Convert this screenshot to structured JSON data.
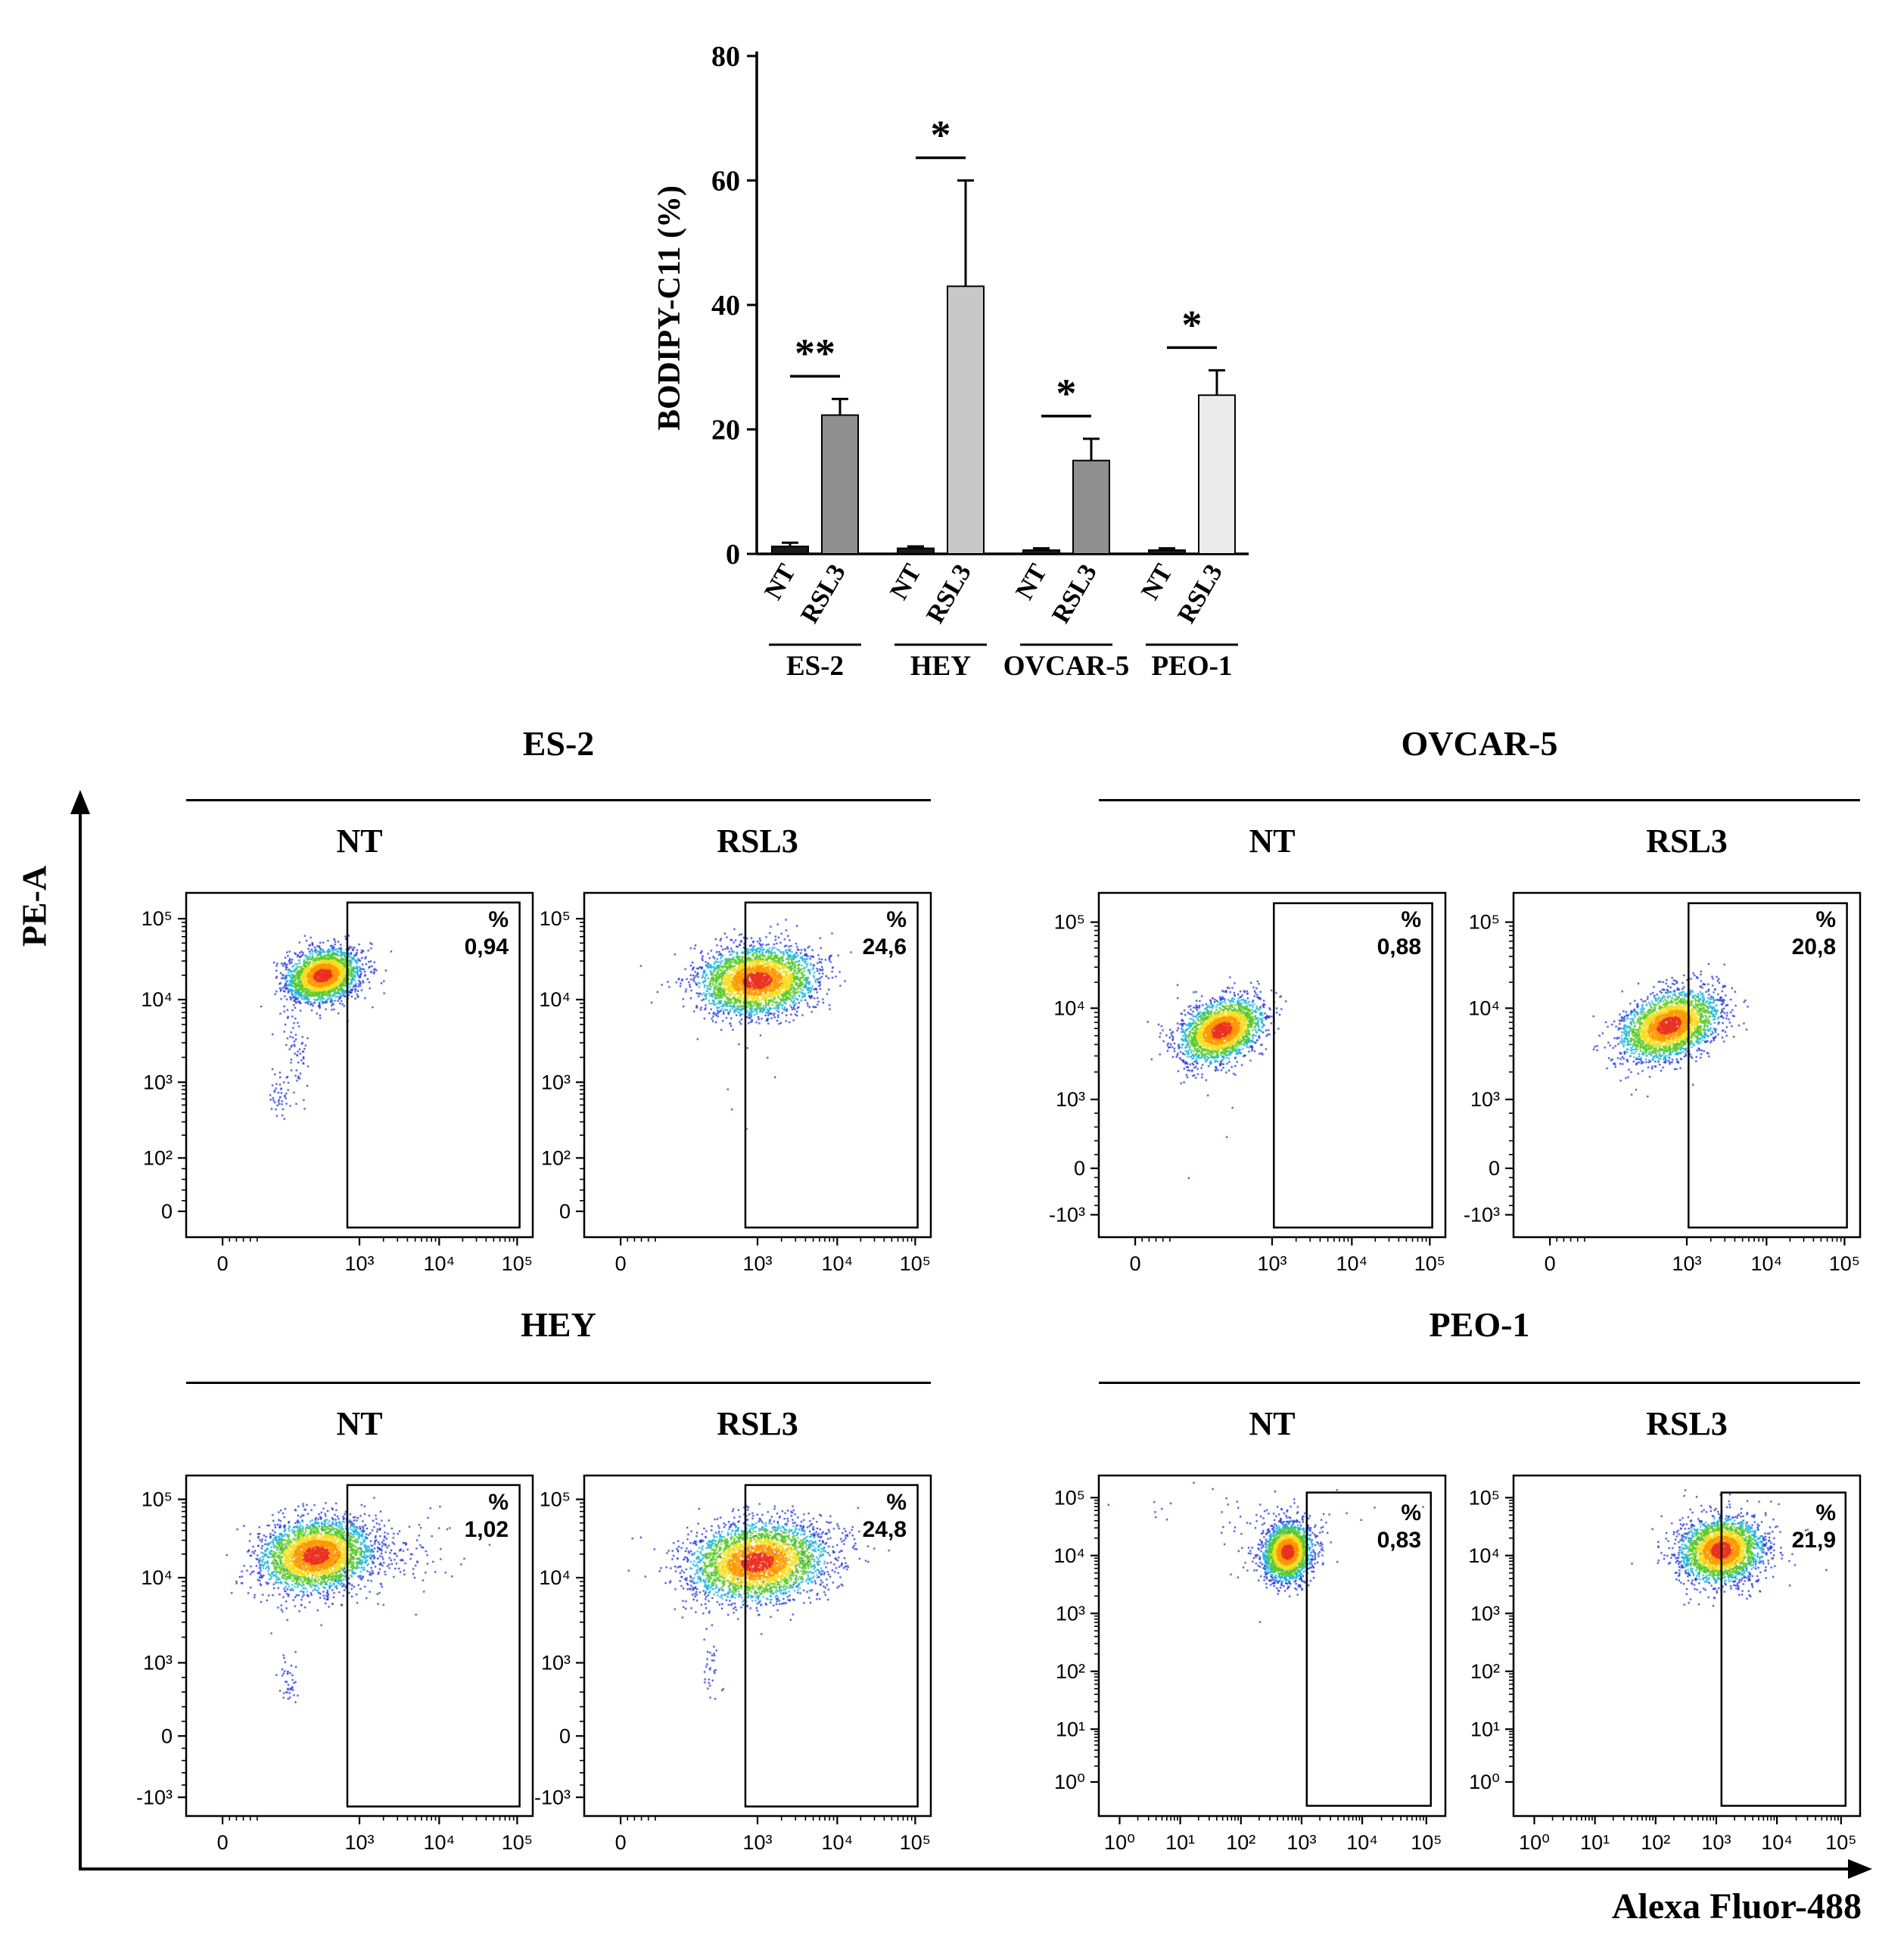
{
  "chart_data": [
    {
      "type": "bar",
      "title": "",
      "xlabel": "",
      "ylabel": "BODIPY-C11 (%)",
      "ylim": [
        0,
        80
      ],
      "yticks": [
        0,
        20,
        40,
        60,
        80
      ],
      "grid": false,
      "groups": [
        {
          "name": "ES-2",
          "significance": "**",
          "bars": [
            {
              "label": "NT",
              "value": 1.2,
              "error": 0.6,
              "color": "#1a1a1a"
            },
            {
              "label": "RSL3",
              "value": 22.3,
              "error": 2.6,
              "color": "#8f8f8f"
            }
          ]
        },
        {
          "name": "HEY",
          "significance": "*",
          "bars": [
            {
              "label": "NT",
              "value": 0.9,
              "error": 0.3,
              "color": "#1a1a1a"
            },
            {
              "label": "RSL3",
              "value": 43,
              "error": 17,
              "color": "#c8c8c8"
            }
          ]
        },
        {
          "name": "OVCAR-5",
          "significance": "*",
          "bars": [
            {
              "label": "NT",
              "value": 0.6,
              "error": 0.3,
              "color": "#1a1a1a"
            },
            {
              "label": "RSL3",
              "value": 15,
              "error": 3.5,
              "color": "#8f8f8f"
            }
          ]
        },
        {
          "name": "PEO-1",
          "significance": "*",
          "bars": [
            {
              "label": "NT",
              "value": 0.6,
              "error": 0.3,
              "color": "#1a1a1a"
            },
            {
              "label": "RSL3",
              "value": 25.5,
              "error": 4,
              "color": "#ebebeb"
            }
          ]
        }
      ]
    },
    {
      "type": "scatter",
      "xlabel": "Alexa Fluor-488",
      "ylabel": "PE-A",
      "cell_line_headers": [
        "ES-2",
        "OVCAR-5",
        "HEY",
        "PEO-1"
      ],
      "palette": {
        "blue": "#2336d4",
        "cyan": "#17b3d9",
        "green": "#57c928",
        "yellow": "#f5de20",
        "orange": "#ff9800",
        "red": "#ea3120"
      },
      "panels": [
        {
          "cell_line": "ES-2",
          "condition": "NT",
          "percent_symbol": "%",
          "percent_value": "0,94",
          "x_ticks": [
            {
              "label": "0",
              "f": 0.105
            },
            {
              "label": "10³",
              "f": 0.5
            },
            {
              "label": "10⁴",
              "f": 0.73
            },
            {
              "label": "10⁵",
              "f": 0.955
            }
          ],
          "y_ticks": [
            {
              "label": "10⁵",
              "f": 0.075
            },
            {
              "label": "10⁴",
              "f": 0.31
            },
            {
              "label": "10³",
              "f": 0.55
            },
            {
              "label": "10²",
              "f": 0.77
            },
            {
              "label": "0",
              "f": 0.925
            }
          ],
          "gate": {
            "x0": 0.465,
            "y0": 0.028,
            "x1": 0.962,
            "y1": 0.972
          },
          "clusters": [
            {
              "type": "dense",
              "cx": 0.395,
              "cy": 0.24,
              "rx": 0.052,
              "ry": 0.036,
              "rot": -15,
              "n": 2600
            },
            {
              "type": "sparse",
              "cx": 0.315,
              "cy": 0.45,
              "rx": 0.016,
              "ry": 0.06,
              "rot": -10,
              "n": 60
            },
            {
              "type": "sparse",
              "cx": 0.275,
              "cy": 0.585,
              "rx": 0.018,
              "ry": 0.035,
              "rot": 0,
              "n": 45
            }
          ]
        },
        {
          "cell_line": "ES-2",
          "condition": "RSL3",
          "percent_symbol": "%",
          "percent_value": "24,6",
          "x_ticks": [
            {
              "label": "0",
              "f": 0.105
            },
            {
              "label": "10³",
              "f": 0.5
            },
            {
              "label": "10⁴",
              "f": 0.73
            },
            {
              "label": "10⁵",
              "f": 0.955
            }
          ],
          "y_ticks": [
            {
              "label": "10⁵",
              "f": 0.075
            },
            {
              "label": "10⁴",
              "f": 0.31
            },
            {
              "label": "10³",
              "f": 0.55
            },
            {
              "label": "10²",
              "f": 0.77
            },
            {
              "label": "0",
              "f": 0.925
            }
          ],
          "gate": {
            "x0": 0.465,
            "y0": 0.028,
            "x1": 0.962,
            "y1": 0.972
          },
          "clusters": [
            {
              "type": "dense",
              "cx": 0.5,
              "cy": 0.255,
              "rx": 0.082,
              "ry": 0.047,
              "rot": -5,
              "n": 3200
            },
            {
              "type": "noise",
              "cx": 0.46,
              "cy": 0.55,
              "rx": 0.08,
              "ry": 0.12,
              "rot": 0,
              "n": 8
            }
          ]
        },
        {
          "cell_line": "OVCAR-5",
          "condition": "NT",
          "percent_symbol": "%",
          "percent_value": "0,88",
          "x_ticks": [
            {
              "label": "0",
              "f": 0.105
            },
            {
              "label": "10³",
              "f": 0.5
            },
            {
              "label": "10⁴",
              "f": 0.73
            },
            {
              "label": "10⁵",
              "f": 0.955
            }
          ],
          "y_ticks": [
            {
              "label": "10⁵",
              "f": 0.085
            },
            {
              "label": "10⁴",
              "f": 0.335
            },
            {
              "label": "10³",
              "f": 0.6
            },
            {
              "label": "0",
              "f": 0.8
            },
            {
              "label": "-10³",
              "f": 0.935
            }
          ],
          "gate": {
            "x0": 0.505,
            "y0": 0.03,
            "x1": 0.962,
            "y1": 0.972
          },
          "clusters": [
            {
              "type": "dense",
              "cx": 0.355,
              "cy": 0.4,
              "rx": 0.062,
              "ry": 0.04,
              "rot": -26,
              "n": 2600
            },
            {
              "type": "noise",
              "cx": 0.38,
              "cy": 0.62,
              "rx": 0.06,
              "ry": 0.08,
              "rot": 0,
              "n": 5
            }
          ]
        },
        {
          "cell_line": "OVCAR-5",
          "condition": "RSL3",
          "percent_symbol": "%",
          "percent_value": "20,8",
          "x_ticks": [
            {
              "label": "0",
              "f": 0.105
            },
            {
              "label": "10³",
              "f": 0.5
            },
            {
              "label": "10⁴",
              "f": 0.73
            },
            {
              "label": "10⁵",
              "f": 0.955
            }
          ],
          "y_ticks": [
            {
              "label": "10⁵",
              "f": 0.085
            },
            {
              "label": "10⁴",
              "f": 0.335
            },
            {
              "label": "10³",
              "f": 0.6
            },
            {
              "label": "0",
              "f": 0.8
            },
            {
              "label": "-10³",
              "f": 0.935
            }
          ],
          "gate": {
            "x0": 0.505,
            "y0": 0.03,
            "x1": 0.962,
            "y1": 0.972
          },
          "clusters": [
            {
              "type": "dense",
              "cx": 0.45,
              "cy": 0.385,
              "rx": 0.072,
              "ry": 0.044,
              "rot": -22,
              "n": 2800
            },
            {
              "type": "noise",
              "cx": 0.42,
              "cy": 0.6,
              "rx": 0.08,
              "ry": 0.08,
              "rot": 0,
              "n": 6
            }
          ]
        },
        {
          "cell_line": "HEY",
          "condition": "NT",
          "percent_symbol": "%",
          "percent_value": "1,02",
          "x_ticks": [
            {
              "label": "0",
              "f": 0.105
            },
            {
              "label": "10³",
              "f": 0.5
            },
            {
              "label": "10⁴",
              "f": 0.73
            },
            {
              "label": "10⁵",
              "f": 0.955
            }
          ],
          "y_ticks": [
            {
              "label": "10⁵",
              "f": 0.07
            },
            {
              "label": "10⁴",
              "f": 0.3
            },
            {
              "label": "10³",
              "f": 0.55
            },
            {
              "label": "0",
              "f": 0.765
            },
            {
              "label": "-10³",
              "f": 0.945
            }
          ],
          "gate": {
            "x0": 0.465,
            "y0": 0.028,
            "x1": 0.962,
            "y1": 0.972
          },
          "clusters": [
            {
              "type": "dense",
              "cx": 0.375,
              "cy": 0.235,
              "rx": 0.078,
              "ry": 0.05,
              "rot": -8,
              "n": 3200
            },
            {
              "type": "sparse",
              "cx": 0.52,
              "cy": 0.235,
              "rx": 0.13,
              "ry": 0.055,
              "rot": -5,
              "n": 220
            },
            {
              "type": "sparse",
              "cx": 0.295,
              "cy": 0.6,
              "rx": 0.014,
              "ry": 0.04,
              "rot": -10,
              "n": 40
            }
          ]
        },
        {
          "cell_line": "HEY",
          "condition": "RSL3",
          "percent_symbol": "%",
          "percent_value": "24,8",
          "x_ticks": [
            {
              "label": "0",
              "f": 0.105
            },
            {
              "label": "10³",
              "f": 0.5
            },
            {
              "label": "10⁴",
              "f": 0.73
            },
            {
              "label": "10⁵",
              "f": 0.955
            }
          ],
          "y_ticks": [
            {
              "label": "10⁵",
              "f": 0.07
            },
            {
              "label": "10⁴",
              "f": 0.3
            },
            {
              "label": "10³",
              "f": 0.55
            },
            {
              "label": "0",
              "f": 0.765
            },
            {
              "label": "-10³",
              "f": 0.945
            }
          ],
          "gate": {
            "x0": 0.465,
            "y0": 0.028,
            "x1": 0.962,
            "y1": 0.972
          },
          "clusters": [
            {
              "type": "dense",
              "cx": 0.5,
              "cy": 0.255,
              "rx": 0.095,
              "ry": 0.055,
              "rot": -6,
              "n": 3400
            },
            {
              "type": "sparse",
              "cx": 0.56,
              "cy": 0.25,
              "rx": 0.14,
              "ry": 0.06,
              "rot": -5,
              "n": 180
            },
            {
              "type": "sparse",
              "cx": 0.365,
              "cy": 0.575,
              "rx": 0.014,
              "ry": 0.045,
              "rot": 0,
              "n": 30
            }
          ]
        },
        {
          "cell_line": "PEO-1",
          "condition": "NT",
          "percent_symbol": "%",
          "percent_value": "0,83",
          "x_ticks": [
            {
              "label": "10⁰",
              "f": 0.06
            },
            {
              "label": "10¹",
              "f": 0.235
            },
            {
              "label": "10²",
              "f": 0.41
            },
            {
              "label": "10³",
              "f": 0.585
            },
            {
              "label": "10⁴",
              "f": 0.76
            },
            {
              "label": "10⁵",
              "f": 0.945
            }
          ],
          "y_ticks": [
            {
              "label": "10⁵",
              "f": 0.065
            },
            {
              "label": "10⁴",
              "f": 0.235
            },
            {
              "label": "10³",
              "f": 0.405
            },
            {
              "label": "10²",
              "f": 0.575
            },
            {
              "label": "10¹",
              "f": 0.745
            },
            {
              "label": "10⁰",
              "f": 0.9
            }
          ],
          "gate": {
            "x0": 0.6,
            "y0": 0.05,
            "x1": 0.958,
            "y1": 0.97
          },
          "clusters": [
            {
              "type": "dense",
              "cx": 0.545,
              "cy": 0.225,
              "rx": 0.034,
              "ry": 0.042,
              "rot": 12,
              "n": 2200
            },
            {
              "type": "sparse",
              "cx": 0.54,
              "cy": 0.21,
              "rx": 0.07,
              "ry": 0.06,
              "rot": 0,
              "n": 120
            },
            {
              "type": "noise",
              "cx": 0.45,
              "cy": 0.1,
              "rx": 0.2,
              "ry": 0.05,
              "rot": 0,
              "n": 40
            }
          ]
        },
        {
          "cell_line": "PEO-1",
          "condition": "RSL3",
          "percent_symbol": "%",
          "percent_value": "21,9",
          "x_ticks": [
            {
              "label": "10⁰",
              "f": 0.06
            },
            {
              "label": "10¹",
              "f": 0.235
            },
            {
              "label": "10²",
              "f": 0.41
            },
            {
              "label": "10³",
              "f": 0.585
            },
            {
              "label": "10⁴",
              "f": 0.76
            },
            {
              "label": "10⁵",
              "f": 0.945
            }
          ],
          "y_ticks": [
            {
              "label": "10⁵",
              "f": 0.065
            },
            {
              "label": "10⁴",
              "f": 0.235
            },
            {
              "label": "10³",
              "f": 0.405
            },
            {
              "label": "10²",
              "f": 0.575
            },
            {
              "label": "10¹",
              "f": 0.745
            },
            {
              "label": "10⁰",
              "f": 0.9
            }
          ],
          "gate": {
            "x0": 0.6,
            "y0": 0.05,
            "x1": 0.958,
            "y1": 0.97
          },
          "clusters": [
            {
              "type": "dense",
              "cx": 0.6,
              "cy": 0.22,
              "rx": 0.058,
              "ry": 0.046,
              "rot": -10,
              "n": 2600
            },
            {
              "type": "sparse",
              "cx": 0.61,
              "cy": 0.21,
              "rx": 0.1,
              "ry": 0.065,
              "rot": 0,
              "n": 140
            }
          ]
        }
      ]
    }
  ]
}
